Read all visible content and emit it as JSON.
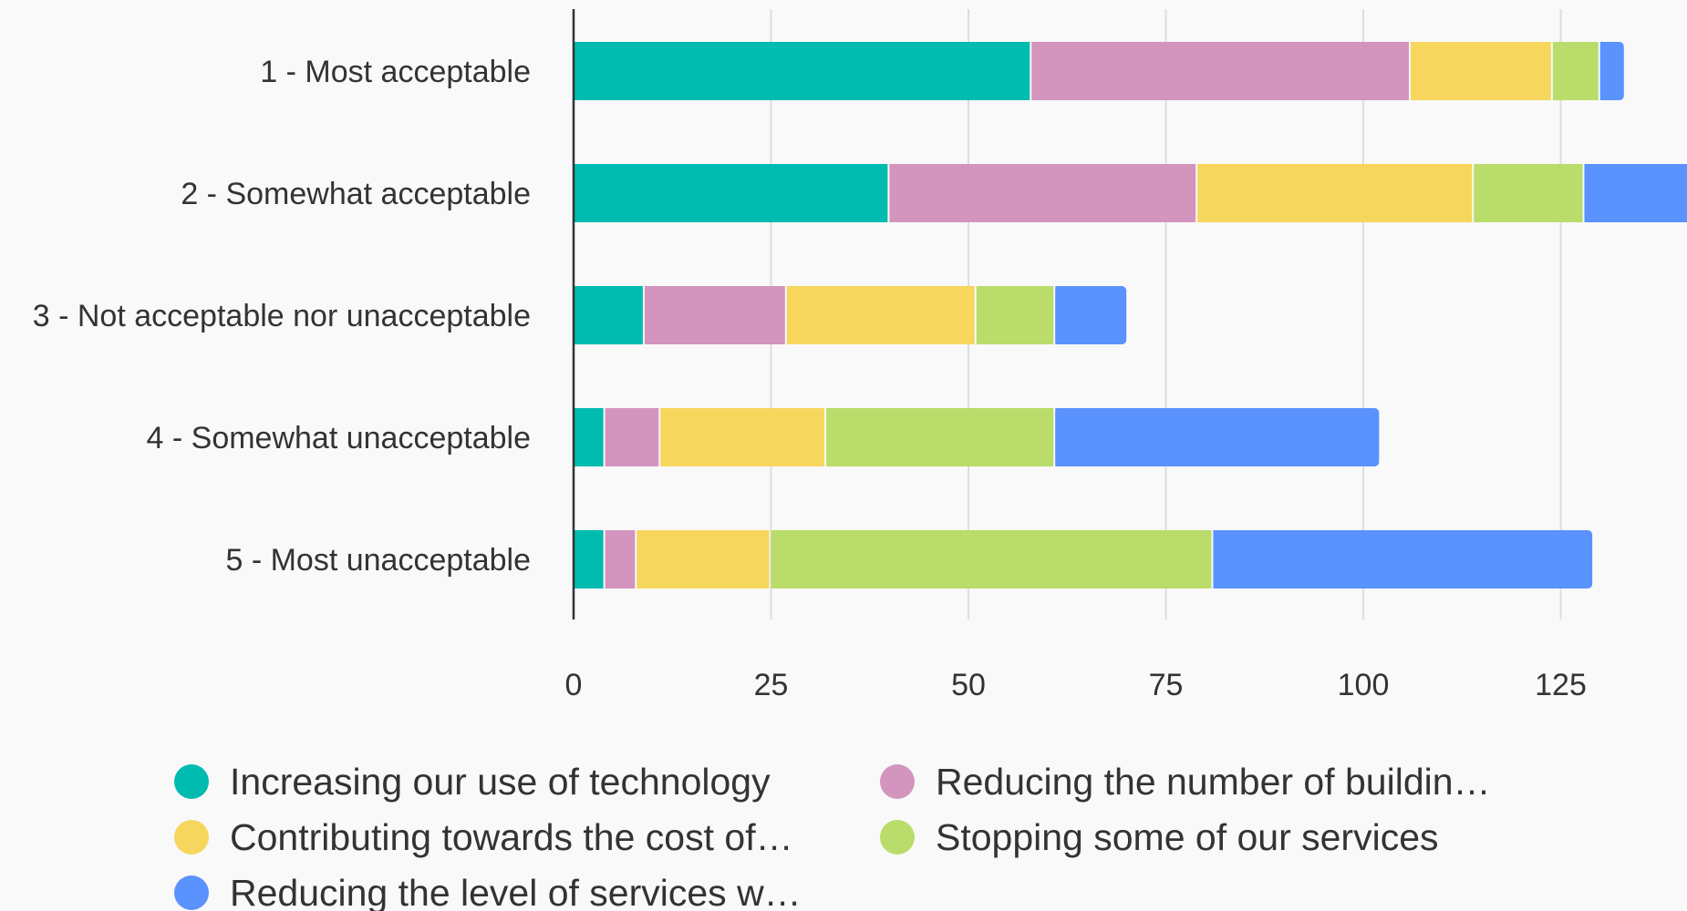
{
  "chart_data": {
    "type": "bar",
    "orientation": "horizontal",
    "stacked": true,
    "title": "",
    "xlabel": "",
    "ylabel": "",
    "categories": [
      "1 - Most acceptable",
      "2 - Somewhat acceptable",
      "3 - Not acceptable nor unacceptable",
      "4 - Somewhat unacceptable",
      "5 - Most unacceptable"
    ],
    "series": [
      {
        "name": "Increasing our use of technology",
        "color": "#00bbaf",
        "values": [
          58,
          40,
          9,
          4,
          4
        ]
      },
      {
        "name": "Reducing the number of buildin…",
        "color": "#d394bd",
        "values": [
          48,
          39,
          18,
          7,
          4
        ]
      },
      {
        "name": "Contributing towards the cost of…",
        "color": "#f7d65d",
        "values": [
          18,
          35,
          24,
          21,
          17
        ]
      },
      {
        "name": "Stopping some of our services",
        "color": "#b9dc6a",
        "values": [
          6,
          14,
          10,
          29,
          56
        ]
      },
      {
        "name": "Reducing the level of services w…",
        "color": "#5a92fe",
        "values": [
          3,
          15,
          9,
          41,
          48
        ]
      }
    ],
    "xlim": [
      0,
      141
    ],
    "xticks": [
      0,
      25,
      50,
      75,
      100,
      125
    ],
    "grid": true,
    "legend_position": "bottom"
  }
}
